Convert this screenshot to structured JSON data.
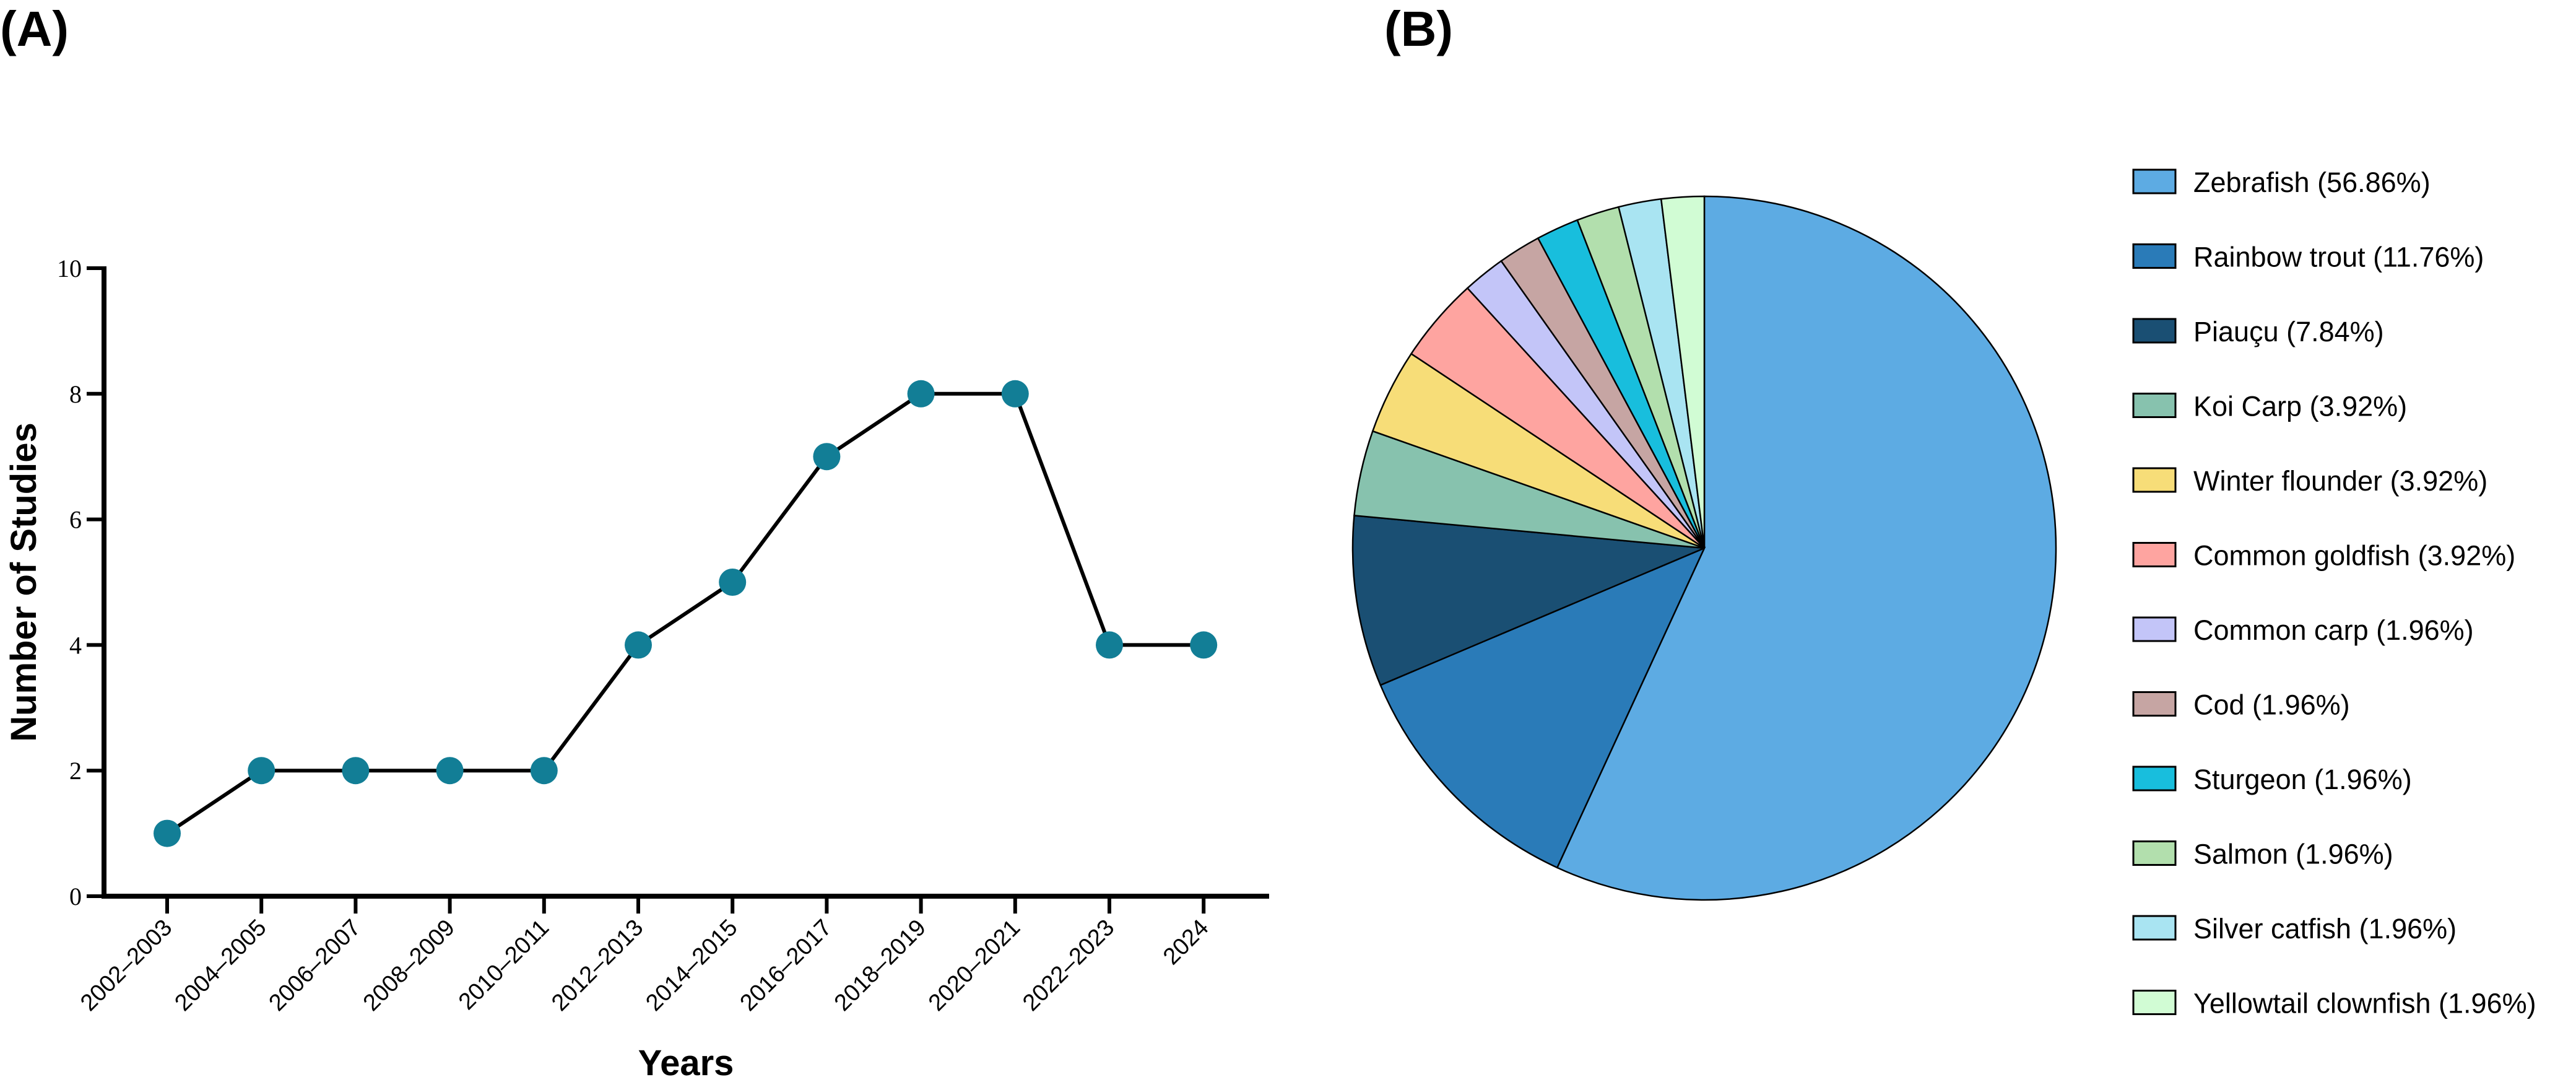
{
  "panels": {
    "a_label": "(A)",
    "b_label": "(B)"
  },
  "chart_data": [
    {
      "type": "line",
      "title": "",
      "xlabel": "Years",
      "ylabel": "Number of Studies",
      "categories": [
        "2002–2003",
        "2004–2005",
        "2006–2007",
        "2008–2009",
        "2010–2011",
        "2012–2013",
        "2014–2015",
        "2016–2017",
        "2018–2019",
        "2020–2021",
        "2022–2023",
        "2024"
      ],
      "values": [
        1,
        2,
        2,
        2,
        2,
        4,
        5,
        7,
        8,
        8,
        4,
        4
      ],
      "ylim": [
        0,
        10
      ],
      "yticks": [
        "0",
        "2",
        "4",
        "6",
        "8",
        "10"
      ],
      "grid": false,
      "point_color": "#127e96",
      "line_color": "#000000"
    },
    {
      "type": "pie",
      "title": "",
      "legend_position": "right",
      "slices": [
        {
          "label": "Zebrafish (56.86%)",
          "value": 56.86,
          "color": "#5dabe3"
        },
        {
          "label": "Rainbow trout (11.76%)",
          "value": 11.76,
          "color": "#2a7bb8"
        },
        {
          "label": "Piauçu (7.84%)",
          "value": 7.84,
          "color": "#1a4f73"
        },
        {
          "label": "Koi Carp (3.92%)",
          "value": 3.92,
          "color": "#87c2ae"
        },
        {
          "label": "Winter flounder (3.92%)",
          "value": 3.92,
          "color": "#f7dd78"
        },
        {
          "label": "Common goldfish (3.92%)",
          "value": 3.92,
          "color": "#fea4a0"
        },
        {
          "label": "Common carp (1.96%)",
          "value": 1.96,
          "color": "#c3c5f8"
        },
        {
          "label": "Cod (1.96%)",
          "value": 1.96,
          "color": "#c6a5a3"
        },
        {
          "label": "Sturgeon (1.96%)",
          "value": 1.96,
          "color": "#18bedd"
        },
        {
          "label": "Salmon (1.96%)",
          "value": 1.96,
          "color": "#b2dfad"
        },
        {
          "label": "Silver catfish (1.96%)",
          "value": 1.96,
          "color": "#a9e4f2"
        },
        {
          "label": "Yellowtail clownfish (1.96%)",
          "value": 1.96,
          "color": "#d1fcd4"
        }
      ]
    }
  ]
}
